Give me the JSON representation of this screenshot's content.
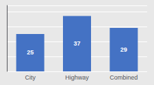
{
  "chart_data": {
    "type": "bar",
    "categories": [
      "City",
      "Highway",
      "Combined"
    ],
    "values": [
      25,
      37,
      29
    ],
    "color": "#4472c4",
    "ylim": [
      0,
      44
    ],
    "yticks": [
      0,
      10,
      20,
      30,
      40
    ],
    "grid": true,
    "data_labels": true,
    "tick_labels": "x"
  }
}
